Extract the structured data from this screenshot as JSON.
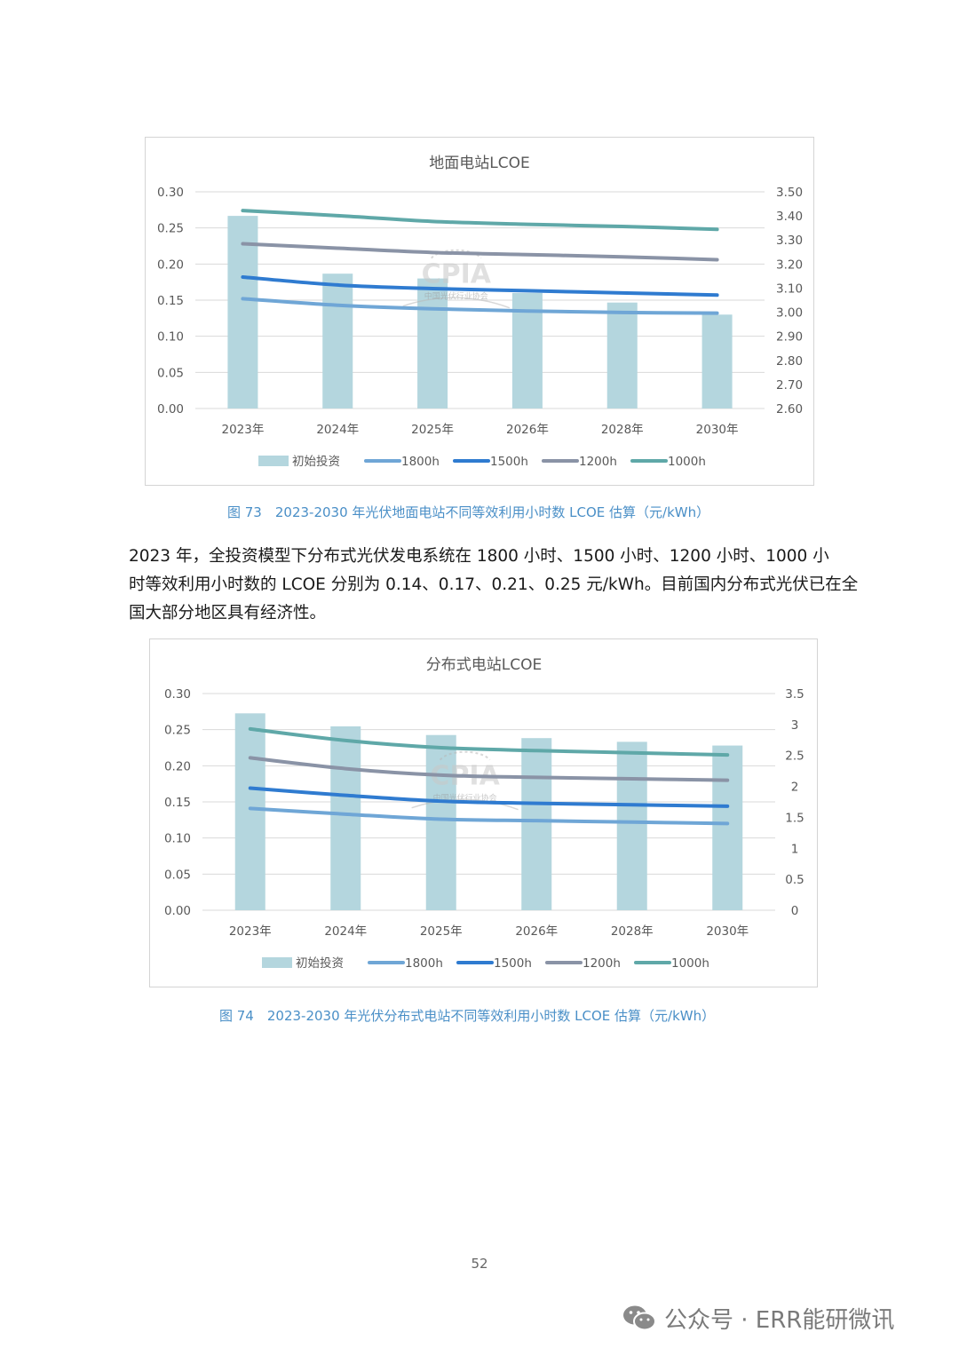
{
  "charts": [
    {
      "title": "地面电站LCOE",
      "type": "bar+line",
      "categories": [
        "2023年",
        "2024年",
        "2025年",
        "2026年",
        "2028年",
        "2030年"
      ],
      "left_axis": {
        "min": 0,
        "max": 0.3,
        "ticks": [
          "0.00",
          "0.05",
          "0.10",
          "0.15",
          "0.20",
          "0.25",
          "0.30"
        ]
      },
      "right_axis": {
        "min": 2.6,
        "max": 3.5,
        "ticks": [
          "2.60",
          "2.70",
          "2.80",
          "2.90",
          "3.00",
          "3.10",
          "3.20",
          "3.30",
          "3.40",
          "3.50"
        ]
      },
      "bar_series": {
        "name": "初始投资",
        "axis": "right",
        "values": [
          3.4,
          3.16,
          3.14,
          3.08,
          3.04,
          2.99
        ]
      },
      "line_series": [
        {
          "name": "1800h",
          "values": [
            0.152,
            0.143,
            0.138,
            0.135,
            0.133,
            0.132
          ]
        },
        {
          "name": "1500h",
          "values": [
            0.182,
            0.171,
            0.166,
            0.163,
            0.16,
            0.157
          ]
        },
        {
          "name": "1200h",
          "values": [
            0.228,
            0.222,
            0.216,
            0.213,
            0.21,
            0.206
          ]
        },
        {
          "name": "1000h",
          "values": [
            0.274,
            0.267,
            0.259,
            0.255,
            0.252,
            0.248
          ]
        }
      ],
      "watermark": {
        "logo": "CPIA",
        "sub": "中国光伏行业协会"
      }
    },
    {
      "title": "分布式电站LCOE",
      "type": "bar+line",
      "categories": [
        "2023年",
        "2024年",
        "2025年",
        "2026年",
        "2028年",
        "2030年"
      ],
      "left_axis": {
        "min": 0,
        "max": 0.3,
        "ticks": [
          "0.00",
          "0.05",
          "0.10",
          "0.15",
          "0.20",
          "0.25",
          "0.30"
        ]
      },
      "right_axis": {
        "min": 0,
        "max": 3.5,
        "ticks": [
          "0",
          "0.5",
          "1",
          "1.5",
          "2",
          "2.5",
          "3",
          "3.5"
        ]
      },
      "bar_series": {
        "name": "初始投资",
        "axis": "right",
        "values": [
          3.18,
          2.97,
          2.83,
          2.78,
          2.72,
          2.66
        ]
      },
      "line_series": [
        {
          "name": "1800h",
          "values": [
            0.141,
            0.133,
            0.126,
            0.124,
            0.122,
            0.12
          ]
        },
        {
          "name": "1500h",
          "values": [
            0.169,
            0.159,
            0.151,
            0.148,
            0.146,
            0.144
          ]
        },
        {
          "name": "1200h",
          "values": [
            0.211,
            0.196,
            0.187,
            0.184,
            0.182,
            0.18
          ]
        },
        {
          "name": "1000h",
          "values": [
            0.251,
            0.235,
            0.225,
            0.221,
            0.218,
            0.215
          ]
        }
      ],
      "watermark": {
        "logo": "CPIA",
        "sub": "中国光伏行业协会"
      }
    }
  ],
  "colors": {
    "bar": "#b4d6de",
    "1800h": "#6fa6d6",
    "1500h": "#2f7bd0",
    "1200h": "#8a93a6",
    "1000h": "#5fa8a8"
  },
  "captions": {
    "fig73": "图 73　2023-2030 年光伏地面电站不同等效利用小时数 LCOE 估算（元/kWh）",
    "fig74": "图 74　2023-2030 年光伏分布式电站不同等效利用小时数 LCOE 估算（元/kWh）"
  },
  "paragraph": {
    "line1": "2023 年，全投资模型下分布式光伏发电系统在 1800 小时、1500 小时、1200 小时、1000 小",
    "line2": "时等效利用小时数的 LCOE 分别为 0.14、0.17、0.21、0.25 元/kWh。目前国内分布式光伏已在全",
    "line3": "国大部分地区具有经济性。"
  },
  "page_number": "52",
  "footer": {
    "text": "公众号 · ERR能研微讯"
  }
}
